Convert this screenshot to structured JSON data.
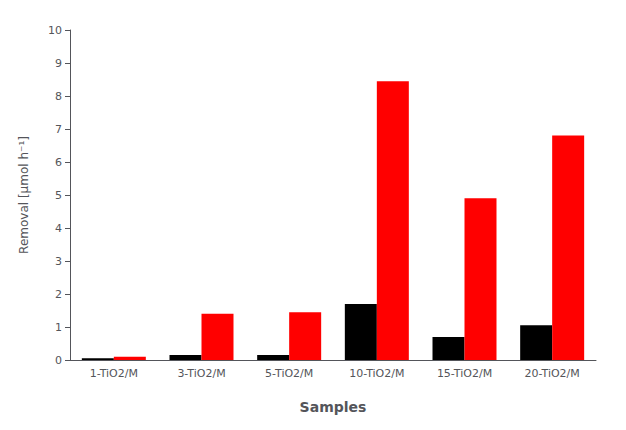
{
  "chart_data": {
    "type": "bar",
    "categories": [
      "1-TiO2/M",
      "3-TiO2/M",
      "5-TiO2/M",
      "10-TiO2/M",
      "15-TiO2/M",
      "20-TiO2/M"
    ],
    "series": [
      {
        "color": "#000000",
        "values": [
          0.05,
          0.15,
          0.15,
          1.7,
          0.7,
          1.05
        ]
      },
      {
        "color": "#ff0000",
        "values": [
          0.1,
          1.4,
          1.45,
          8.45,
          4.9,
          6.8
        ]
      }
    ],
    "xlabel": "Samples",
    "ylabel": "Removal [μmol h⁻¹]",
    "ylim": [
      0,
      10
    ],
    "yticks": [
      0,
      1,
      2,
      3,
      4,
      5,
      6,
      7,
      8,
      9,
      10
    ],
    "grid": false
  }
}
